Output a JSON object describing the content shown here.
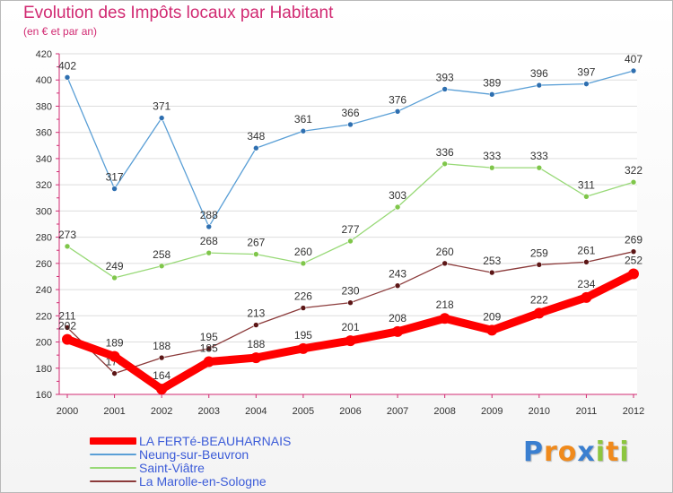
{
  "title": "Evolution des Impôts locaux par Habitant",
  "subtitle": "(en € et par an)",
  "brand": {
    "letters": [
      {
        "ch": "P",
        "color": "#3a7fd0"
      },
      {
        "ch": "r",
        "color": "#f08a1c"
      },
      {
        "ch": "o",
        "color": "#f08a1c"
      },
      {
        "ch": "x",
        "color": "#3a7fd0"
      },
      {
        "ch": "i",
        "color": "#8cc63f"
      },
      {
        "ch": "t",
        "color": "#f08a1c"
      },
      {
        "ch": "i",
        "color": "#8cc63f"
      }
    ]
  },
  "chart_data": {
    "type": "line",
    "title": "Evolution des Impôts locaux par Habitant",
    "subtitle": "(en € et par an)",
    "xlabel": "",
    "ylabel": "",
    "x": [
      "2000",
      "2001",
      "2002",
      "2003",
      "2004",
      "2005",
      "2006",
      "2007",
      "2008",
      "2009",
      "2010",
      "2011",
      "2012"
    ],
    "ylim": [
      160,
      420
    ],
    "yticks": [
      160,
      180,
      200,
      220,
      240,
      260,
      280,
      300,
      320,
      340,
      360,
      380,
      400,
      420
    ],
    "grid": "horizontal",
    "legend_position": "bottom-left",
    "series": [
      {
        "name": "Neung-sur-Beuvron",
        "color": "#5a9fd6",
        "marker_color": "#2e6fb0",
        "values": [
          402,
          317,
          371,
          288,
          348,
          361,
          366,
          376,
          393,
          389,
          396,
          397,
          407
        ]
      },
      {
        "name": "Saint-Viâtre",
        "color": "#98d977",
        "marker_color": "#7fc64a",
        "values": [
          273,
          249,
          258,
          268,
          267,
          260,
          277,
          303,
          336,
          333,
          333,
          311,
          322
        ]
      },
      {
        "name": "La Marolle-en-Sologne",
        "color": "#8b3a3a",
        "marker_color": "#5c1616",
        "values": [
          211,
          176,
          188,
          195,
          213,
          226,
          230,
          243,
          260,
          253,
          259,
          261,
          269
        ]
      },
      {
        "name": "LA FERTé-BEAUHARNAIS",
        "color": "#ff0000",
        "marker_color": "#ff0000",
        "values": [
          202,
          189,
          164,
          185,
          188,
          195,
          201,
          208,
          218,
          209,
          222,
          234,
          252
        ]
      }
    ],
    "legend_order": [
      "LA FERTé-BEAUHARNAIS",
      "Neung-sur-Beuvron",
      "Saint-Viâtre",
      "La Marolle-en-Sologne"
    ]
  }
}
